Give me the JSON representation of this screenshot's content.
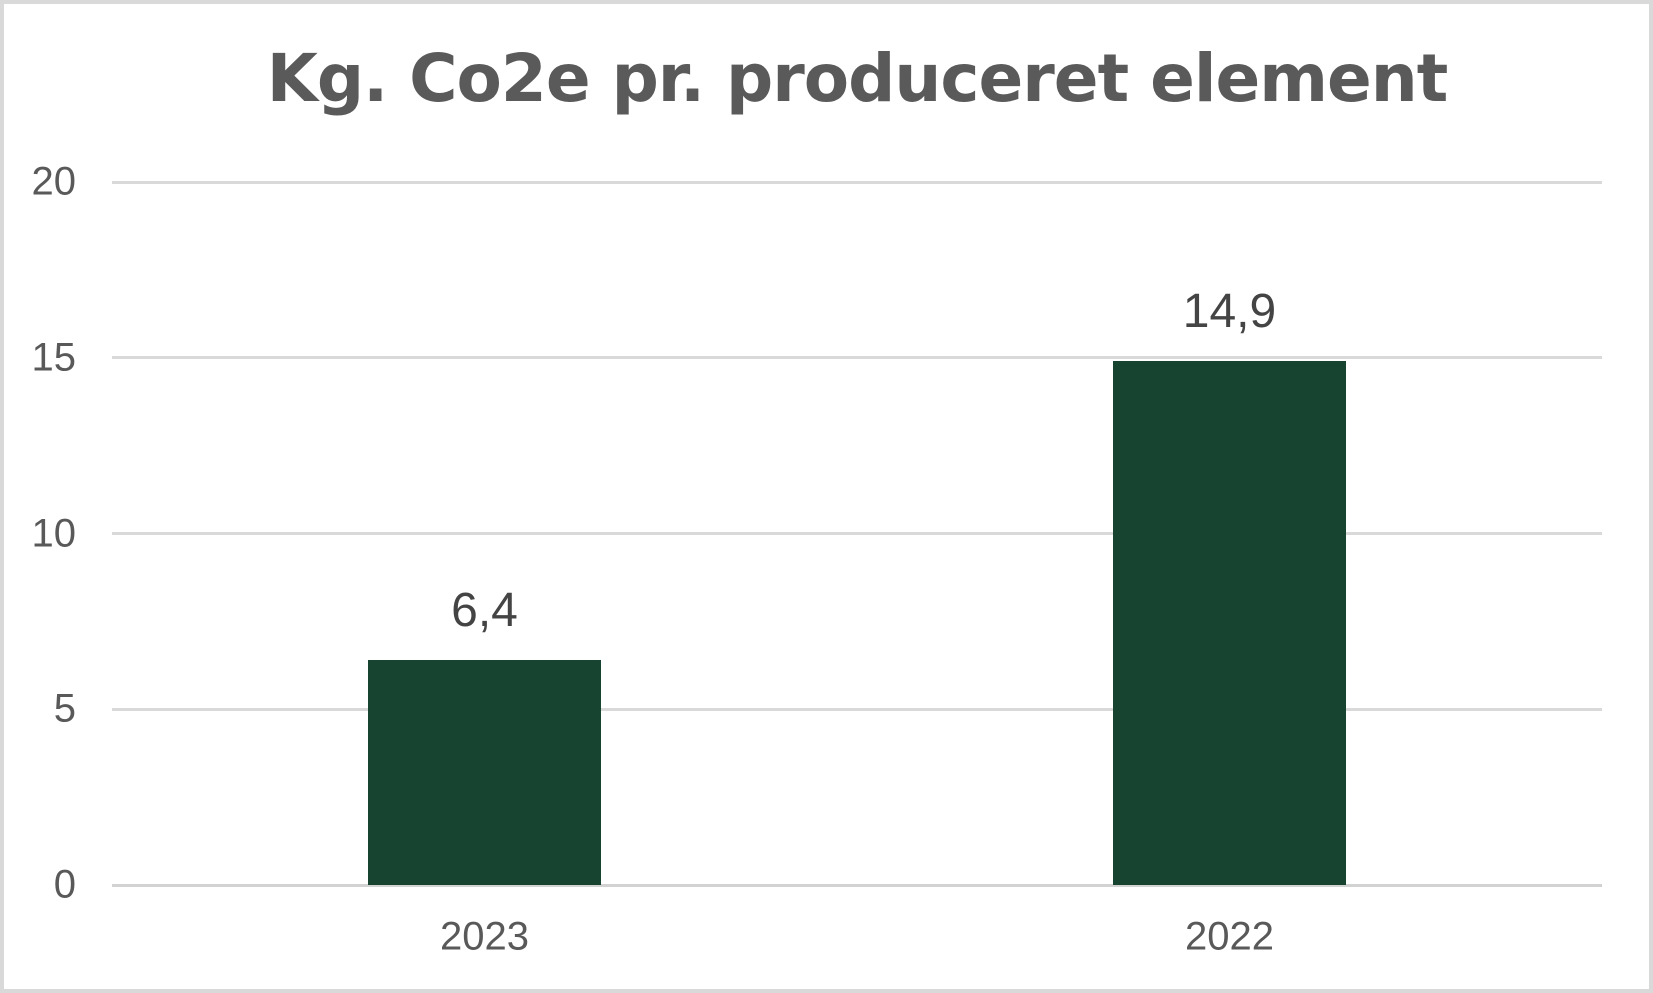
{
  "chart_data": {
    "type": "bar",
    "title": "Kg. Co2e pr. produceret element",
    "categories": [
      "2023",
      "2022"
    ],
    "values": [
      6.4,
      14.9
    ],
    "value_labels": [
      "6,4",
      "14,9"
    ],
    "ylim": [
      0,
      20
    ],
    "yticks": [
      20,
      15,
      10,
      5,
      0
    ],
    "ytick_labels": [
      "20",
      "15",
      "10",
      "5",
      "0"
    ],
    "xlabel": "",
    "ylabel": "",
    "grid": true,
    "legend_position": "none",
    "bar_color": "#164430"
  },
  "style": {
    "background": "#ffffff",
    "frame_border_color": "#d9d9d9",
    "gridline_color": "#d9d9d9",
    "axis_line_color": "#d2d2d2",
    "title_color": "#5a5a5a",
    "tick_label_color": "#595959",
    "value_label_color": "#444444"
  }
}
